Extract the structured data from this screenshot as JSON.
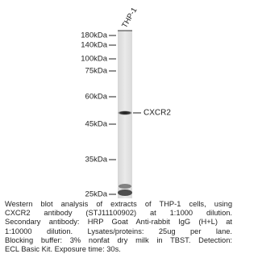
{
  "lane_label": "THP-1",
  "markers": [
    "180kDa",
    "140kDa",
    "100kDa",
    "75kDa",
    "60kDa",
    "45kDa",
    "35kDa",
    "25kDa"
  ],
  "band_label": "CXCR2",
  "caption": [
    "Western blot analysis of extracts of THP-1 cells, using",
    "CXCR2 antibody (STJ11100902) at 1:1000 dilution.",
    "Secondary antibody: HRP Goat Anti-rabbit IgG (H+L) at",
    "1:10000 dilution. Lysates/proteins: 25ug per lane.",
    "Blocking buffer: 3% nonfat dry milk in TBST. Detection:",
    "ECL Basic Kit. Exposure time: 30s."
  ]
}
